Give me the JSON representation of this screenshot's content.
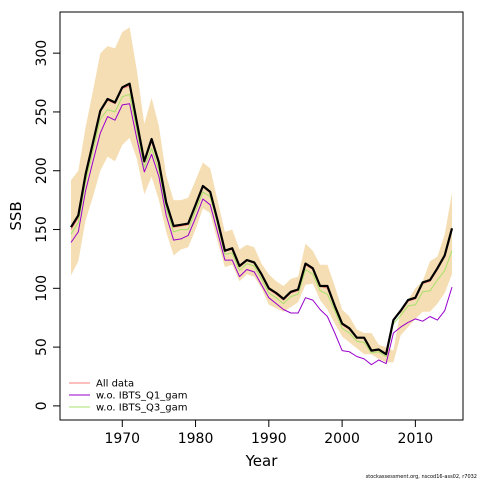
{
  "chart_data": {
    "type": "line",
    "xlabel": "Year",
    "ylabel": "SSB",
    "xlim": [
      1961.5,
      2016.5
    ],
    "ylim": [
      -12,
      335
    ],
    "x_ticks": [
      1970,
      1980,
      1990,
      2000,
      2010
    ],
    "y_ticks": [
      0,
      50,
      100,
      150,
      200,
      250,
      300
    ],
    "grid": false,
    "legend_position": "bottom-left",
    "credit": "stockassessment.org, nscod16-ass02, r7032",
    "x": [
      1963,
      1964,
      1965,
      1966,
      1967,
      1968,
      1969,
      1970,
      1971,
      1972,
      1973,
      1974,
      1975,
      1976,
      1977,
      1978,
      1979,
      1980,
      1981,
      1982,
      1983,
      1984,
      1985,
      1986,
      1987,
      1988,
      1989,
      1990,
      1991,
      1992,
      1993,
      1994,
      1995,
      1996,
      1997,
      1998,
      1999,
      2000,
      2001,
      2002,
      2003,
      2004,
      2005,
      2006,
      2007,
      2008,
      2009,
      2010,
      2011,
      2012,
      2013,
      2014,
      2015
    ],
    "band": {
      "color": "#f5deb3",
      "lower": [
        111,
        123,
        158,
        178,
        200,
        212,
        208,
        222,
        228,
        210,
        180,
        195,
        175,
        148,
        128,
        133,
        135,
        150,
        168,
        164,
        140,
        118,
        120,
        106,
        112,
        110,
        100,
        86,
        83,
        80,
        84,
        88,
        103,
        104,
        90,
        82,
        70,
        59,
        54,
        49,
        44,
        44,
        40,
        37,
        37,
        60,
        67,
        74,
        80,
        80,
        87,
        96,
        112
      ],
      "upper": [
        192,
        200,
        237,
        268,
        300,
        306,
        304,
        318,
        322,
        285,
        240,
        262,
        238,
        196,
        175,
        175,
        177,
        192,
        207,
        202,
        175,
        148,
        150,
        133,
        137,
        135,
        121,
        112,
        106,
        102,
        108,
        110,
        138,
        132,
        120,
        120,
        102,
        82,
        76,
        65,
        62,
        62,
        52,
        50,
        47,
        82,
        90,
        100,
        106,
        123,
        127,
        146,
        181
      ]
    },
    "series": [
      {
        "name": "All data",
        "color": "#ff7f7f",
        "width": 1,
        "values": [
          150,
          160,
          195,
          222,
          250,
          260,
          257,
          270,
          272,
          240,
          207,
          225,
          206,
          172,
          152,
          153,
          154,
          170,
          186,
          182,
          158,
          132,
          133,
          118,
          124,
          122,
          111,
          99,
          95,
          90,
          96,
          98,
          120,
          116,
          102,
          100,
          85,
          69,
          65,
          58,
          58,
          47,
          48,
          44,
          73,
          80,
          89,
          91,
          104,
          106,
          116,
          127,
          150
        ]
      },
      {
        "name": "w.o. IBTS_Q1_gam",
        "color": "#9900cc",
        "width": 1,
        "values": [
          139,
          148,
          183,
          208,
          232,
          246,
          243,
          256,
          257,
          227,
          199,
          214,
          195,
          162,
          141,
          142,
          145,
          160,
          176,
          171,
          148,
          124,
          124,
          110,
          116,
          114,
          103,
          92,
          87,
          82,
          79,
          79,
          92,
          90,
          82,
          76,
          62,
          47,
          46,
          42,
          40,
          35,
          39,
          36,
          62,
          67,
          71,
          74,
          72,
          76,
          73,
          81,
          101
        ]
      },
      {
        "name": "w.o. IBTS_Q3_gam",
        "color": "#a8e06c",
        "width": 1,
        "values": [
          146,
          156,
          191,
          217,
          244,
          252,
          250,
          263,
          265,
          234,
          203,
          219,
          201,
          168,
          148,
          150,
          150,
          166,
          182,
          178,
          155,
          129,
          130,
          115,
          121,
          119,
          108,
          96,
          92,
          87,
          93,
          95,
          116,
          112,
          98,
          95,
          81,
          66,
          62,
          55,
          54,
          45,
          46,
          42,
          70,
          77,
          85,
          86,
          97,
          98,
          107,
          115,
          132
        ]
      },
      {
        "name": "",
        "color": "#000000",
        "width": 2.2,
        "values": [
          152,
          162,
          197,
          224,
          251,
          261,
          258,
          271,
          274,
          241,
          208,
          227,
          207,
          173,
          153,
          154,
          155,
          171,
          187,
          182,
          158,
          132,
          134,
          119,
          124,
          122,
          112,
          100,
          96,
          91,
          97,
          99,
          121,
          117,
          102,
          102,
          85,
          70,
          66,
          58,
          58,
          47,
          48,
          44,
          73,
          81,
          90,
          92,
          105,
          107,
          117,
          128,
          151
        ]
      }
    ]
  }
}
